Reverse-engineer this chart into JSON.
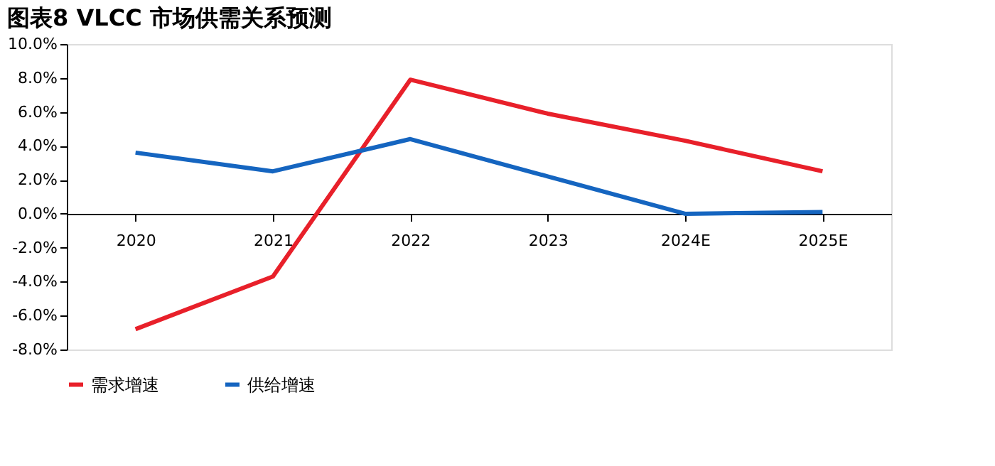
{
  "chart_data": {
    "type": "line",
    "title": "图表8 VLCC 市场供需关系预测",
    "categories": [
      "2020",
      "2021",
      "2022",
      "2023",
      "2024E",
      "2025E"
    ],
    "series": [
      {
        "name": "需求增速",
        "color": "#e8202a",
        "values": [
          -6.8,
          -3.7,
          7.9,
          5.9,
          4.3,
          2.5
        ]
      },
      {
        "name": "供给增速",
        "color": "#1565c0",
        "values": [
          3.6,
          2.5,
          4.4,
          2.2,
          0.0,
          0.1
        ]
      }
    ],
    "ylim": [
      -8,
      10
    ],
    "yticks": [
      {
        "value": -8,
        "label": "-8.0%"
      },
      {
        "value": -6,
        "label": "-6.0%"
      },
      {
        "value": -4,
        "label": "-4.0%"
      },
      {
        "value": -2,
        "label": "-2.0%"
      },
      {
        "value": 0,
        "label": "0.0%"
      },
      {
        "value": 2,
        "label": "2.0%"
      },
      {
        "value": 4,
        "label": "4.0%"
      },
      {
        "value": 6,
        "label": "6.0%"
      },
      {
        "value": 8,
        "label": "8.0%"
      },
      {
        "value": 10,
        "label": "10.0%"
      }
    ],
    "grid": false,
    "legend": "bottom",
    "marker": "none",
    "line_style": "solid"
  }
}
